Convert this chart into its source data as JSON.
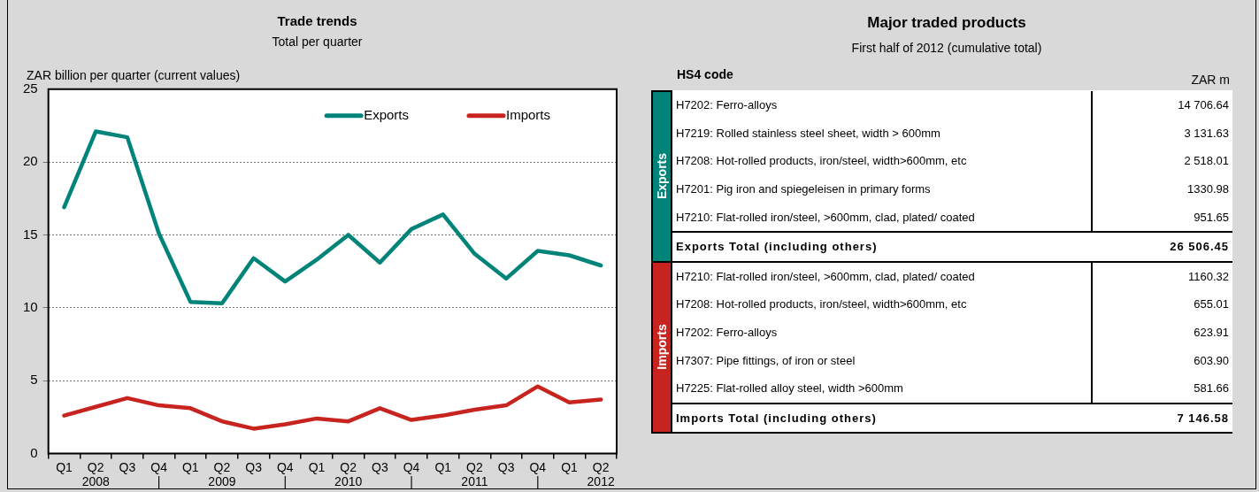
{
  "chart_data": [
    {
      "type": "line",
      "title": "Trade trends",
      "subtitle": "Total per quarter",
      "ylabel": "ZAR billion per quarter (current values)",
      "categories": [
        "Q1",
        "Q2\n2008",
        "Q3",
        "Q4\n|",
        "Q1",
        "Q2\n2009",
        "Q3",
        "Q4\n|",
        "Q1",
        "Q2\n2010",
        "Q3",
        "Q4\n|",
        "Q1",
        "Q2\n2011",
        "Q3",
        "Q4\n|",
        "Q1",
        "Q2\n2012"
      ],
      "series": [
        {
          "name": "Exports",
          "color": "#00847a",
          "values": [
            16.9,
            22.1,
            21.7,
            15.1,
            10.4,
            10.3,
            13.4,
            11.8,
            13.3,
            15.0,
            13.1,
            15.4,
            16.4,
            13.7,
            12.0,
            13.9,
            13.6,
            12.9
          ]
        },
        {
          "name": "Imports",
          "color": "#c8241f",
          "values": [
            2.6,
            3.2,
            3.8,
            3.3,
            3.1,
            2.2,
            1.7,
            2.0,
            2.4,
            2.2,
            3.1,
            2.3,
            2.6,
            3.0,
            3.3,
            4.6,
            3.5,
            3.7
          ]
        }
      ],
      "ylim": [
        0,
        25
      ],
      "yticks": [
        0,
        5,
        10,
        15,
        20,
        25
      ],
      "grid": "y",
      "legend": "top right",
      "marker": "none",
      "line_style": "solid"
    },
    {
      "type": "other",
      "title": "Major traded products",
      "subtitle": "First half of 2012 (cumulative total)",
      "annotations": [
        "HS4 code",
        "ZAR m"
      ],
      "categories": [
        "H7202: Ferro-alloys",
        "H7219: Rolled stainless steel sheet, width > 600mm",
        "H7208: Hot-rolled products, iron/steel, width>600mm, etc",
        "H7201: Pig iron and spiegeleisen in primary forms",
        "H7210: Flat-rolled iron/steel, >600mm, clad, plated/ coated",
        "Exports Total (including others)",
        "H7210: Flat-rolled iron/steel, >600mm, clad, plated/ coated",
        "H7208: Hot-rolled products, iron/steel, width>600mm, etc",
        "H7202: Ferro-alloys",
        "H7307: Pipe fittings, of iron or steel",
        "H7225: Flat-rolled alloy steel, width >600mm",
        "Imports Total (including others)"
      ],
      "series": [
        {
          "name": "Exports",
          "values": [
            14706.64,
            3131.63,
            2518.01,
            1330.98,
            951.65,
            26506.45,
            null,
            null,
            null,
            null,
            null,
            null
          ],
          "value_labels": [
            "14 706.64",
            "3 131.63",
            "2 518.01",
            "1330.98",
            "951.65",
            "26 506.45",
            null,
            null,
            null,
            null,
            null,
            null
          ]
        },
        {
          "name": "Imports",
          "values": [
            null,
            null,
            null,
            null,
            null,
            null,
            1160.32,
            655.01,
            623.91,
            603.9,
            581.66,
            7146.58
          ],
          "value_labels": [
            null,
            null,
            null,
            null,
            null,
            null,
            "1160.32",
            "655.01",
            "623.91",
            "603.90",
            "581.66",
            "7 146.58"
          ]
        }
      ]
    }
  ]
}
